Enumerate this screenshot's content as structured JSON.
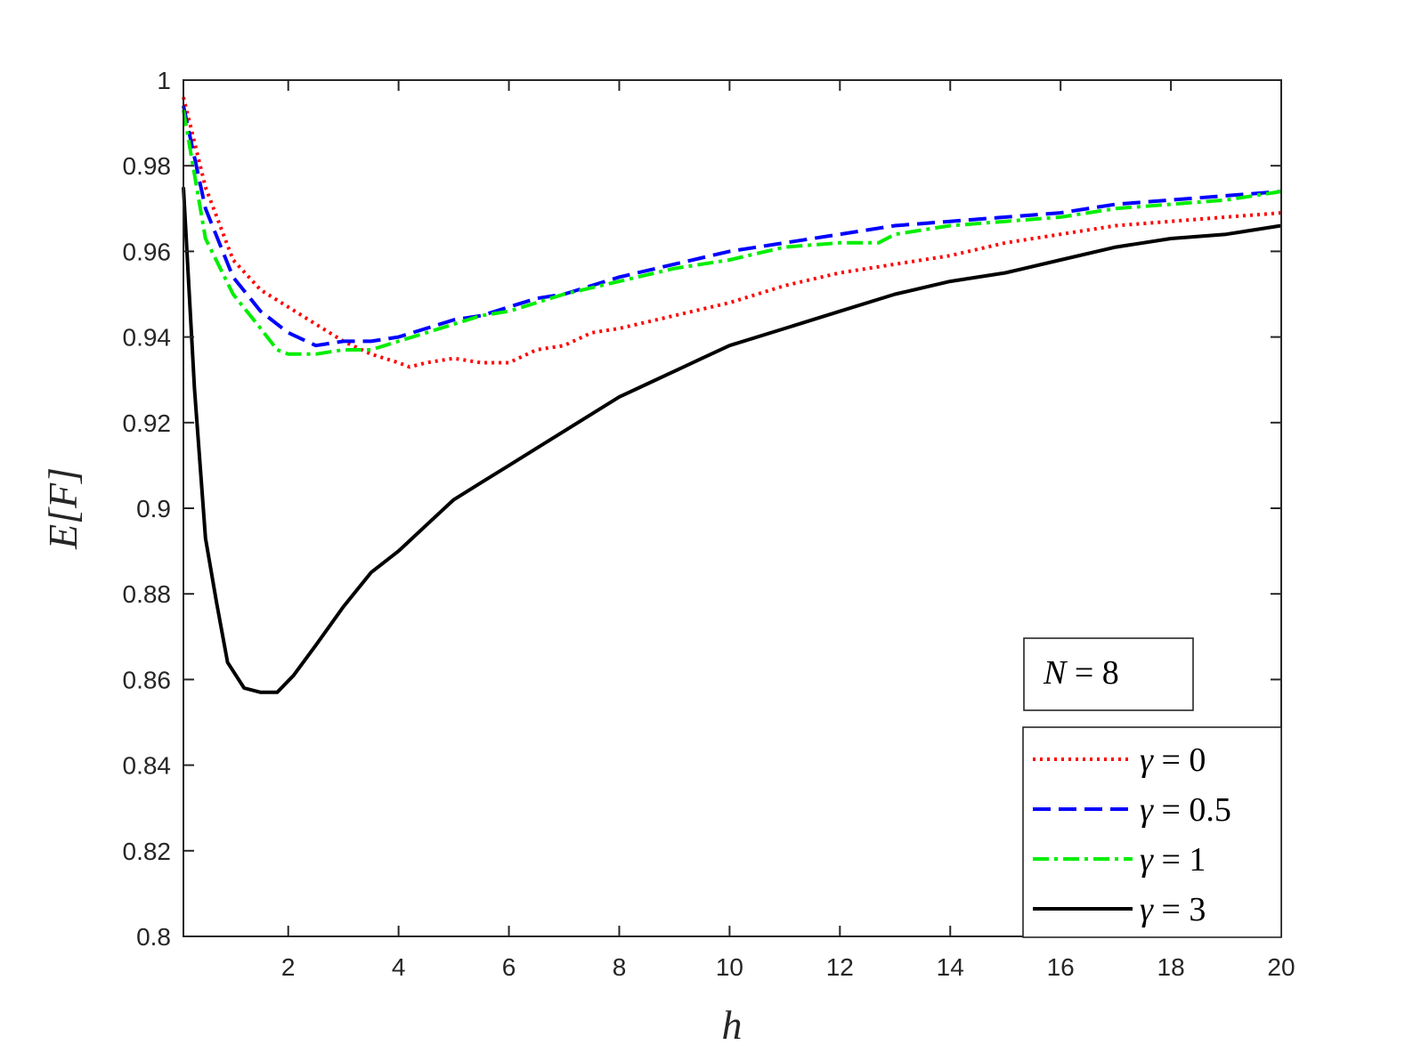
{
  "chart_data": {
    "type": "line",
    "xlabel": "h",
    "ylabel": "E[F]",
    "xlim": [
      0.1,
      20
    ],
    "ylim": [
      0.8,
      1.0
    ],
    "xticks": [
      2,
      4,
      6,
      8,
      10,
      12,
      14,
      16,
      18,
      20
    ],
    "yticks": [
      0.8,
      0.82,
      0.84,
      0.86,
      0.88,
      0.9,
      0.92,
      0.94,
      0.96,
      0.98,
      1
    ],
    "grid": false,
    "legend_position": "bottom-right",
    "annotation": {
      "var": "N",
      "rest": " = 8"
    },
    "series": [
      {
        "name": "γ = 0",
        "label_var": "γ",
        "label_rest": " = 0",
        "color": "#ff0000",
        "style": "dotted",
        "x": [
          0.1,
          0.5,
          1,
          1.5,
          2,
          2.5,
          3,
          3.5,
          4,
          4.2,
          4.5,
          5,
          5.5,
          6,
          6.5,
          7,
          7.5,
          8,
          9,
          10,
          11,
          12,
          13,
          14,
          15,
          16,
          17,
          18,
          19,
          20
        ],
        "y": [
          0.996,
          0.975,
          0.958,
          0.951,
          0.947,
          0.943,
          0.939,
          0.936,
          0.934,
          0.933,
          0.934,
          0.935,
          0.934,
          0.934,
          0.937,
          0.938,
          0.941,
          0.942,
          0.945,
          0.948,
          0.952,
          0.955,
          0.957,
          0.959,
          0.962,
          0.964,
          0.966,
          0.967,
          0.968,
          0.969
        ]
      },
      {
        "name": "γ = 0.5",
        "label_var": "γ",
        "label_rest": " = 0.5",
        "color": "#0000ff",
        "style": "dashed",
        "x": [
          0.1,
          0.5,
          1,
          1.5,
          2,
          2.5,
          3,
          3.5,
          4,
          4.5,
          5,
          5.5,
          6,
          6.5,
          7,
          8,
          9,
          10,
          11,
          12,
          13,
          14,
          15,
          16,
          17,
          18,
          19,
          20
        ],
        "y": [
          0.994,
          0.97,
          0.954,
          0.946,
          0.941,
          0.938,
          0.939,
          0.939,
          0.94,
          0.942,
          0.944,
          0.945,
          0.947,
          0.949,
          0.95,
          0.954,
          0.957,
          0.96,
          0.962,
          0.964,
          0.966,
          0.967,
          0.968,
          0.969,
          0.971,
          0.972,
          0.973,
          0.974
        ]
      },
      {
        "name": "γ = 1",
        "label_var": "γ",
        "label_rest": " = 1",
        "color": "#00ee00",
        "style": "dashdot",
        "x": [
          0.1,
          0.5,
          1,
          1.5,
          1.8,
          2,
          2.5,
          3,
          3.5,
          4,
          4.5,
          5,
          5.5,
          6,
          6.5,
          7,
          8,
          9,
          10,
          11,
          12,
          12.7,
          13,
          14,
          15,
          16,
          17,
          18,
          19,
          20
        ],
        "y": [
          0.993,
          0.963,
          0.95,
          0.942,
          0.937,
          0.936,
          0.936,
          0.937,
          0.937,
          0.939,
          0.941,
          0.943,
          0.945,
          0.946,
          0.948,
          0.95,
          0.953,
          0.956,
          0.958,
          0.961,
          0.962,
          0.962,
          0.964,
          0.966,
          0.967,
          0.968,
          0.97,
          0.971,
          0.972,
          0.974
        ]
      },
      {
        "name": "γ = 3",
        "label_var": "γ",
        "label_rest": " = 3",
        "color": "#000000",
        "style": "solid",
        "x": [
          0.1,
          0.3,
          0.5,
          0.7,
          0.9,
          1.2,
          1.5,
          1.8,
          2.1,
          2.5,
          3,
          3.5,
          4,
          4.5,
          5,
          5.5,
          6,
          6.5,
          7,
          7.5,
          8,
          8.5,
          9,
          9.5,
          10,
          11,
          12,
          13,
          14,
          15,
          16,
          17,
          18,
          19,
          20
        ],
        "y": [
          0.975,
          0.928,
          0.893,
          0.878,
          0.864,
          0.858,
          0.857,
          0.857,
          0.861,
          0.868,
          0.877,
          0.885,
          0.89,
          0.896,
          0.902,
          0.906,
          0.91,
          0.914,
          0.918,
          0.922,
          0.926,
          0.929,
          0.932,
          0.935,
          0.938,
          0.942,
          0.946,
          0.95,
          0.953,
          0.955,
          0.958,
          0.961,
          0.963,
          0.964,
          0.966
        ]
      }
    ]
  }
}
